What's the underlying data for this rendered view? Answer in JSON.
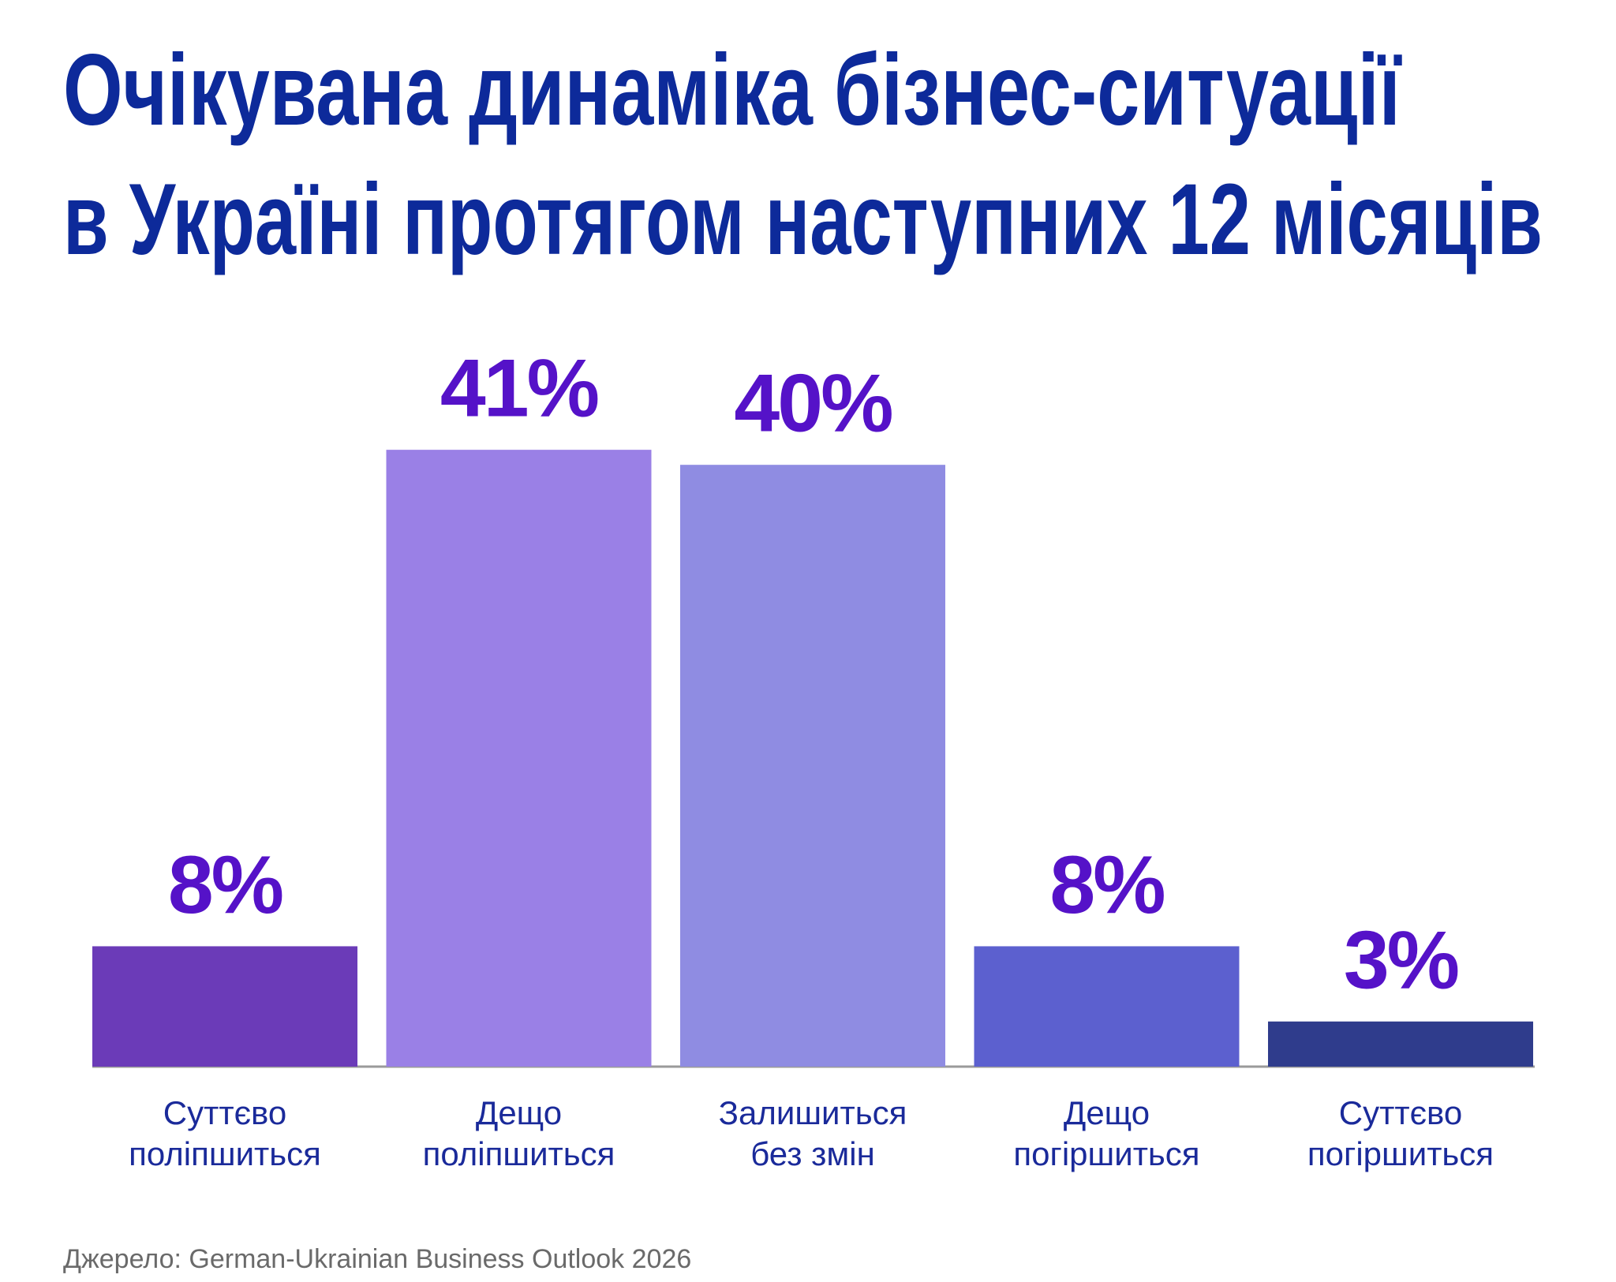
{
  "chart_data": {
    "type": "bar",
    "title": [
      "Очікувана динаміка бізнес-ситуації",
      "в Україні протягом наступних 12 місяців"
    ],
    "categories": [
      "Суттєво поліпшиться",
      "Дещо поліпшиться",
      "Залишиться без змін",
      "Дещо погіршиться",
      "Суттєво погіршиться"
    ],
    "values": [
      8,
      41,
      40,
      8,
      3
    ],
    "value_labels": [
      "8%",
      "41%",
      "40%",
      "8%",
      "3%"
    ],
    "colors": [
      "#6b3bb8",
      "#9a80e6",
      "#8f8ce2",
      "#5c60cf",
      "#2f3c8c"
    ],
    "source": "Джерело: German-Ukrainian Business Outlook 2026"
  }
}
